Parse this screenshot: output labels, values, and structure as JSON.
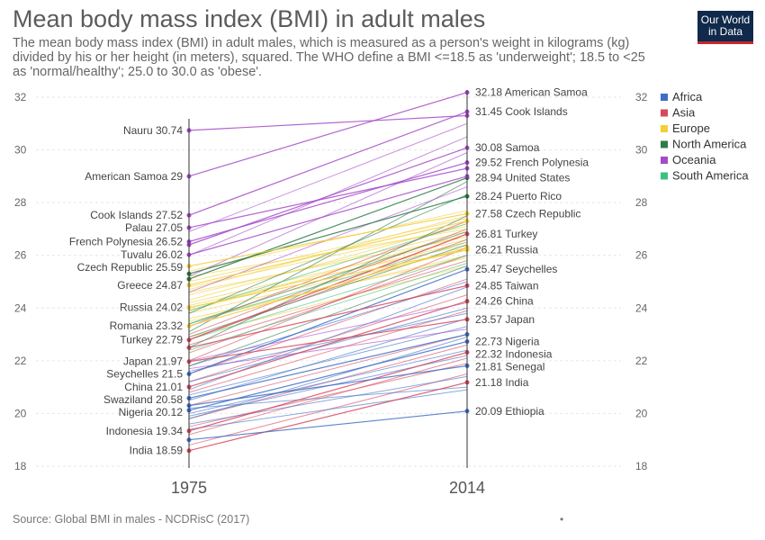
{
  "header": {
    "title": "Mean body mass index (BMI) in adult males",
    "subtitle": "The mean body mass index (BMI) in adult males, which is measured as a person's weight in kilograms (kg) divided by his or her height (in meters), squared. The WHO define a BMI <=18.5 as 'underweight'; 18.5 to <25 as 'normal/healthy'; 25.0 to 30.0 as 'obese'.",
    "logo_line1": "Our World",
    "logo_line2": "in Data"
  },
  "footer": {
    "source": "Source: Global BMI in males - NCDRisC (2017)",
    "dot": "•"
  },
  "colors": {
    "Africa": "#3f6ec6",
    "Asia": "#d64a5e",
    "Europe": "#f2cf3a",
    "North America": "#2f7a4a",
    "Oceania": "#a54ac9",
    "South America": "#3fbf80"
  },
  "chart_data": {
    "type": "slope",
    "x": [
      "1975",
      "2014"
    ],
    "ylim": [
      18,
      32
    ],
    "yticks": [
      18,
      20,
      22,
      24,
      26,
      28,
      30,
      32
    ],
    "legend": [
      "Africa",
      "Asia",
      "Europe",
      "North America",
      "Oceania",
      "South America"
    ],
    "legend_position": "right",
    "labeled_series": [
      {
        "name": "American Samoa",
        "region": "Oceania",
        "values": [
          29.0,
          32.18
        ],
        "label_start": "American Samoa 29",
        "label_end": "32.18 American Samoa"
      },
      {
        "name": "Cook Islands",
        "region": "Oceania",
        "values": [
          27.52,
          31.45
        ],
        "label_start": "Cook Islands 27.52",
        "label_end": "31.45 Cook Islands"
      },
      {
        "name": "Nauru",
        "region": "Oceania",
        "values": [
          30.74,
          31.3
        ],
        "label_start": "Nauru 30.74",
        "label_end": ""
      },
      {
        "name": "Samoa",
        "region": "Oceania",
        "values": [
          26.4,
          30.08
        ],
        "label_start": "",
        "label_end": "30.08 Samoa"
      },
      {
        "name": "French Polynesia",
        "region": "Oceania",
        "values": [
          26.52,
          29.52
        ],
        "label_start": "French Polynesia 26.52",
        "label_end": "29.52 French Polynesia"
      },
      {
        "name": "United States",
        "region": "North America",
        "values": [
          25.1,
          28.94
        ],
        "label_start": "",
        "label_end": "28.94 United States"
      },
      {
        "name": "Puerto Rico",
        "region": "North America",
        "values": [
          25.3,
          28.24
        ],
        "label_start": "",
        "label_end": "28.24 Puerto Rico"
      },
      {
        "name": "Palau",
        "region": "Oceania",
        "values": [
          27.05,
          29.3
        ],
        "label_start": "Palau 27.05",
        "label_end": ""
      },
      {
        "name": "Tuvalu",
        "region": "Oceania",
        "values": [
          26.02,
          29.0
        ],
        "label_start": "Tuvalu 26.02",
        "label_end": ""
      },
      {
        "name": "Czech Republic",
        "region": "Europe",
        "values": [
          25.59,
          27.58
        ],
        "label_start": "Czech Republic 25.59",
        "label_end": "27.58 Czech Republic"
      },
      {
        "name": "Greece",
        "region": "Europe",
        "values": [
          24.87,
          27.3
        ],
        "label_start": "Greece 24.87",
        "label_end": ""
      },
      {
        "name": "Turkey",
        "region": "Asia",
        "values": [
          22.79,
          26.81
        ],
        "label_start": "Turkey 22.79",
        "label_end": "26.81 Turkey"
      },
      {
        "name": "Russia",
        "region": "Europe",
        "values": [
          24.02,
          26.21
        ],
        "label_start": "Russia 24.02",
        "label_end": "26.21 Russia"
      },
      {
        "name": "Romania",
        "region": "Europe",
        "values": [
          23.32,
          26.3
        ],
        "label_start": "Romania 23.32",
        "label_end": ""
      },
      {
        "name": "Seychelles",
        "region": "Africa",
        "values": [
          21.5,
          25.47
        ],
        "label_start": "Seychelles 21.5",
        "label_end": "25.47 Seychelles"
      },
      {
        "name": "Taiwan",
        "region": "Asia",
        "values": [
          22.5,
          24.85
        ],
        "label_start": "",
        "label_end": "24.85 Taiwan"
      },
      {
        "name": "China",
        "region": "Asia",
        "values": [
          21.01,
          24.26
        ],
        "label_start": "China 21.01",
        "label_end": "24.26 China"
      },
      {
        "name": "Japan",
        "region": "Asia",
        "values": [
          21.97,
          23.57
        ],
        "label_start": "Japan 21.97",
        "label_end": "23.57 Japan"
      },
      {
        "name": "Nigeria",
        "region": "Africa",
        "values": [
          20.12,
          22.73
        ],
        "label_start": "Nigeria 20.12",
        "label_end": "22.73 Nigeria"
      },
      {
        "name": "Indonesia",
        "region": "Asia",
        "values": [
          19.34,
          22.32
        ],
        "label_start": "Indonesia 19.34",
        "label_end": "22.32 Indonesia"
      },
      {
        "name": "Senegal",
        "region": "Africa",
        "values": [
          20.3,
          21.81
        ],
        "label_start": "",
        "label_end": "21.81 Senegal"
      },
      {
        "name": "Swaziland",
        "region": "Africa",
        "values": [
          20.58,
          23.0
        ],
        "label_start": "Swaziland 20.58",
        "label_end": ""
      },
      {
        "name": "India",
        "region": "Asia",
        "values": [
          18.59,
          21.18
        ],
        "label_start": "India 18.59",
        "label_end": "21.18 India"
      },
      {
        "name": "Ethiopia",
        "region": "Africa",
        "values": [
          19.0,
          20.09
        ],
        "label_start": "",
        "label_end": "20.09 Ethiopia"
      }
    ],
    "background_series": [
      {
        "region": "Europe",
        "values": [
          24.2,
          26.6
        ]
      },
      {
        "region": "Europe",
        "values": [
          24.5,
          26.9
        ]
      },
      {
        "region": "Europe",
        "values": [
          24.8,
          27.1
        ]
      },
      {
        "region": "Europe",
        "values": [
          25.0,
          27.4
        ]
      },
      {
        "region": "Europe",
        "values": [
          24.0,
          26.5
        ]
      },
      {
        "region": "Europe",
        "values": [
          23.8,
          26.2
        ]
      },
      {
        "region": "Europe",
        "values": [
          24.6,
          26.7
        ]
      },
      {
        "region": "Europe",
        "values": [
          25.2,
          27.0
        ]
      },
      {
        "region": "Europe",
        "values": [
          23.5,
          26.0
        ]
      },
      {
        "region": "Europe",
        "values": [
          24.3,
          27.2
        ]
      },
      {
        "region": "Europe",
        "values": [
          23.9,
          26.8
        ]
      },
      {
        "region": "Europe",
        "values": [
          24.7,
          27.5
        ]
      },
      {
        "region": "Europe",
        "values": [
          25.4,
          27.7
        ]
      },
      {
        "region": "Europe",
        "values": [
          23.6,
          25.9
        ]
      },
      {
        "region": "Europe",
        "values": [
          24.1,
          26.4
        ]
      },
      {
        "region": "Europe",
        "values": [
          22.9,
          25.6
        ]
      },
      {
        "region": "Asia",
        "values": [
          22.3,
          26.0
        ]
      },
      {
        "region": "Asia",
        "values": [
          22.0,
          26.3
        ]
      },
      {
        "region": "Asia",
        "values": [
          23.0,
          27.0
        ]
      },
      {
        "region": "Asia",
        "values": [
          22.6,
          25.8
        ]
      },
      {
        "region": "Asia",
        "values": [
          21.5,
          25.1
        ]
      },
      {
        "region": "Asia",
        "values": [
          23.3,
          27.3
        ]
      },
      {
        "region": "Asia",
        "values": [
          20.8,
          23.9
        ]
      },
      {
        "region": "Asia",
        "values": [
          20.3,
          23.0
        ]
      },
      {
        "region": "Asia",
        "values": [
          19.8,
          22.6
        ]
      },
      {
        "region": "Asia",
        "values": [
          19.5,
          21.9
        ]
      },
      {
        "region": "Asia",
        "values": [
          18.8,
          21.5
        ]
      },
      {
        "region": "Asia",
        "values": [
          21.2,
          24.5
        ]
      },
      {
        "region": "Asia",
        "values": [
          22.8,
          26.6
        ]
      },
      {
        "region": "Asia",
        "values": [
          19.2,
          22.1
        ]
      },
      {
        "region": "Africa",
        "values": [
          20.5,
          23.6
        ]
      },
      {
        "region": "Africa",
        "values": [
          20.0,
          22.4
        ]
      },
      {
        "region": "Africa",
        "values": [
          19.8,
          22.9
        ]
      },
      {
        "region": "Africa",
        "values": [
          21.2,
          24.0
        ]
      },
      {
        "region": "Africa",
        "values": [
          20.7,
          23.3
        ]
      },
      {
        "region": "Africa",
        "values": [
          19.6,
          21.4
        ]
      },
      {
        "region": "Africa",
        "values": [
          21.8,
          25.0
        ]
      },
      {
        "region": "Africa",
        "values": [
          20.2,
          21.0
        ]
      },
      {
        "region": "Africa",
        "values": [
          19.9,
          22.2
        ]
      },
      {
        "region": "Africa",
        "values": [
          20.9,
          24.8
        ]
      },
      {
        "region": "Africa",
        "values": [
          21.6,
          23.8
        ]
      },
      {
        "region": "Africa",
        "values": [
          19.4,
          20.9
        ]
      },
      {
        "region": "North America",
        "values": [
          23.4,
          26.9
        ]
      },
      {
        "region": "North America",
        "values": [
          22.5,
          27.5
        ]
      },
      {
        "region": "North America",
        "values": [
          23.8,
          28.3
        ]
      },
      {
        "region": "North America",
        "values": [
          22.9,
          26.4
        ]
      },
      {
        "region": "North America",
        "values": [
          21.8,
          25.6
        ]
      },
      {
        "region": "North America",
        "values": [
          23.1,
          28.8
        ]
      },
      {
        "region": "South America",
        "values": [
          23.4,
          26.5
        ]
      },
      {
        "region": "South America",
        "values": [
          22.8,
          26.0
        ]
      },
      {
        "region": "South America",
        "values": [
          23.9,
          27.2
        ]
      },
      {
        "region": "South America",
        "values": [
          22.4,
          25.7
        ]
      },
      {
        "region": "Oceania",
        "values": [
          26.9,
          31.0
        ]
      },
      {
        "region": "Oceania",
        "values": [
          26.0,
          30.5
        ]
      },
      {
        "region": "Oceania",
        "values": [
          25.2,
          29.9
        ]
      },
      {
        "region": "Oceania",
        "values": [
          24.6,
          28.6
        ]
      },
      {
        "region": "Oceania",
        "values": [
          22.0,
          24.2
        ]
      },
      {
        "region": "Oceania",
        "values": [
          21.7,
          23.2
        ]
      }
    ]
  }
}
